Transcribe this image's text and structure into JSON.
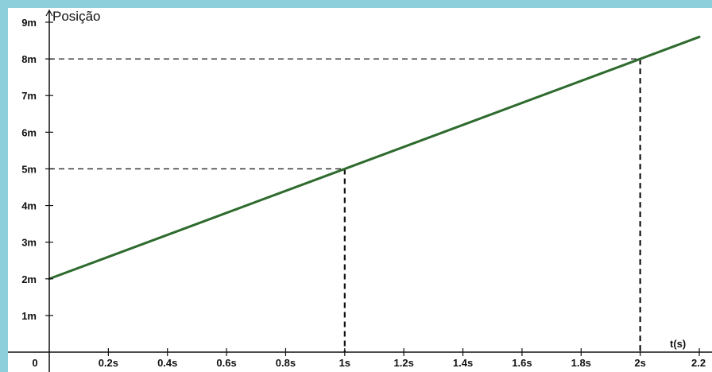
{
  "chart_data": {
    "type": "line",
    "title": "",
    "ylabel": "Posição",
    "xlabel": "t(s)",
    "xlim": [
      0,
      2.2
    ],
    "ylim": [
      0,
      9
    ],
    "x_ticks": [
      {
        "value": 0,
        "label": "0"
      },
      {
        "value": 0.2,
        "label": "0.2s"
      },
      {
        "value": 0.4,
        "label": "0.4s"
      },
      {
        "value": 0.6,
        "label": "0.6s"
      },
      {
        "value": 0.8,
        "label": "0.8s"
      },
      {
        "value": 1,
        "label": "1s"
      },
      {
        "value": 1.2,
        "label": "1.2s"
      },
      {
        "value": 1.4,
        "label": "1.4s"
      },
      {
        "value": 1.6,
        "label": "1.6s"
      },
      {
        "value": 1.8,
        "label": "1.8s"
      },
      {
        "value": 2,
        "label": "2s"
      },
      {
        "value": 2.2,
        "label": "2.2"
      }
    ],
    "y_ticks": [
      {
        "value": 1,
        "label": "1m"
      },
      {
        "value": 2,
        "label": "2m"
      },
      {
        "value": 3,
        "label": "3m"
      },
      {
        "value": 4,
        "label": "4m"
      },
      {
        "value": 5,
        "label": "5m"
      },
      {
        "value": 6,
        "label": "6m"
      },
      {
        "value": 7,
        "label": "7m"
      },
      {
        "value": 8,
        "label": "8m"
      },
      {
        "value": 9,
        "label": "9m"
      }
    ],
    "series": [
      {
        "x": [
          0,
          2.2
        ],
        "y": [
          2,
          8.6
        ],
        "color": "#2e6b2e"
      }
    ],
    "reference_points": [
      {
        "x": 1,
        "y": 5
      },
      {
        "x": 2,
        "y": 8
      }
    ],
    "grid": false
  }
}
